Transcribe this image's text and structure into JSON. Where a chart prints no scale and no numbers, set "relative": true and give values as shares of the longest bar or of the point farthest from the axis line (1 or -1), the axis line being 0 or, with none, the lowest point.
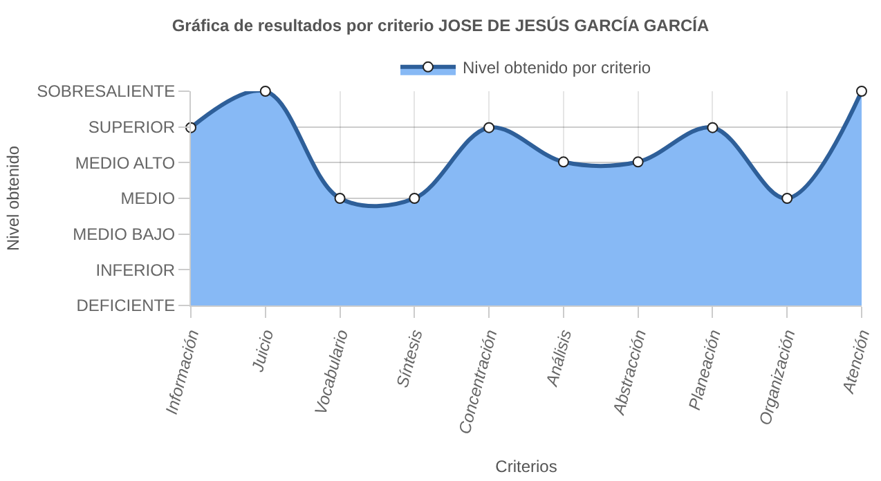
{
  "chart_data": {
    "type": "area",
    "title": "Gráfica de resultados por criterio JOSE DE JESÚS GARCÍA GARCÍA",
    "xlabel": "Criterios",
    "annotations": [
      "Nivel obtenido"
    ],
    "categories": [
      "Información",
      "Juicio",
      "Vocabulario",
      "Síntesis",
      "Concentración",
      "Análisis",
      "Abstracción",
      "Planeación",
      "Organización",
      "Atención"
    ],
    "y_categories": [
      "SOBRESALIENTE",
      "SUPERIOR",
      "MEDIO ALTO",
      "MEDIO",
      "MEDIO BAJO",
      "INFERIOR",
      "DEFICIENTE"
    ],
    "relative": true,
    "series": [
      {
        "name": "Nivel obtenido por criterio",
        "color": "#2e5f99",
        "values": [
          0.83,
          1,
          0.5,
          0.5,
          0.83,
          0.67,
          0.67,
          0.83,
          0.5,
          1
        ]
      }
    ],
    "grid": true,
    "legend": "top",
    "marker": "circle",
    "line_style": "solid"
  }
}
